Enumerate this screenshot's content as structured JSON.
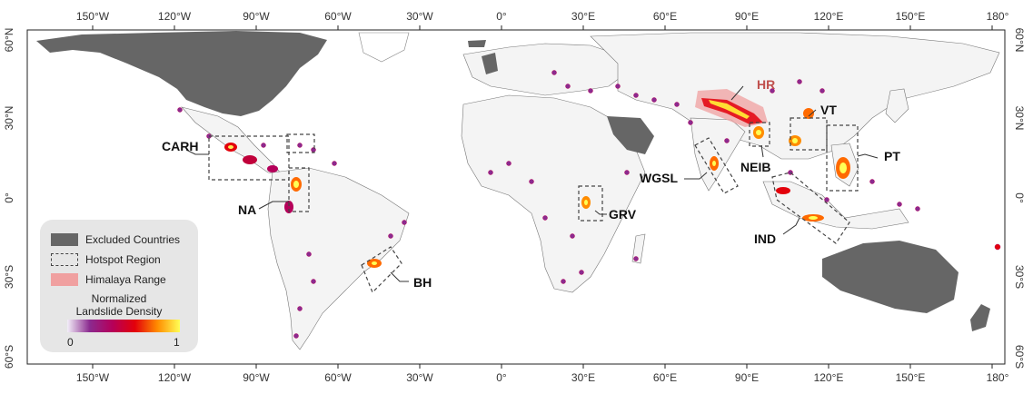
{
  "axes": {
    "top_lon_labels": [
      "150°W",
      "120°W",
      "90°W",
      "60°W",
      "30°W",
      "0°",
      "30°E",
      "60°E",
      "90°E",
      "120°E",
      "150°E",
      "180°"
    ],
    "bottom_lon_labels": [
      "150°W",
      "120°W",
      "90°W",
      "60°W",
      "30°W",
      "0°",
      "30°E",
      "60°E",
      "90°E",
      "120°E",
      "150°E",
      "180°"
    ],
    "left_lat_labels": [
      "60°N",
      "30°N",
      "0°",
      "30°S",
      "60°S"
    ],
    "right_lat_labels": [
      "60°N",
      "30°N",
      "0°",
      "30°S",
      "60°S"
    ]
  },
  "regions": {
    "carh": "CARH",
    "na": "NA",
    "bh": "BH",
    "grv": "GRV",
    "wgsl": "WGSL",
    "hr": "HR",
    "neib": "NEIB",
    "vt": "VT",
    "pt": "PT",
    "ind": "IND"
  },
  "legend": {
    "excluded": "Excluded Countries",
    "hotspot": "Hotspot  Region",
    "himalaya": "Himalaya Range",
    "density_title_1": "Normalized",
    "density_title_2": "Landslide Density",
    "min": "0",
    "max": "1"
  },
  "colors": {
    "excluded": "#666666",
    "himalaya": "#f0a0a0",
    "hotspot_border": "#444444",
    "density_low": "#8b2a8f",
    "density_high": "#ffff55"
  }
}
